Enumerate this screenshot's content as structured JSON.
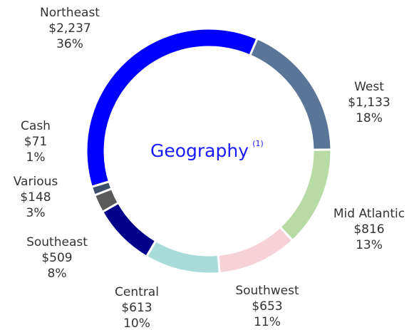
{
  "chart_data": {
    "type": "donut",
    "title": "Geography",
    "title_note": "(1)",
    "categories": [
      "Northeast",
      "West",
      "Mid Atlantic",
      "Southwest",
      "Central",
      "Southeast",
      "Various",
      "Cash"
    ],
    "values": [
      2237,
      1133,
      816,
      653,
      613,
      509,
      148,
      71
    ],
    "value_labels": [
      "$2,237",
      "$1,133",
      "$816",
      "$653",
      "$613",
      "$509",
      "$148",
      "$71"
    ],
    "percents": [
      36,
      18,
      13,
      11,
      10,
      8,
      3,
      1
    ],
    "percent_labels": [
      "36%",
      "18%",
      "13%",
      "11%",
      "10%",
      "8%",
      "3%",
      "1%"
    ],
    "colors": [
      "#0000ff",
      "#5b7599",
      "#b8dba6",
      "#f6d1d7",
      "#a8dcd9",
      "#00008b",
      "#5a5a5a",
      "#3d4f6b"
    ]
  }
}
